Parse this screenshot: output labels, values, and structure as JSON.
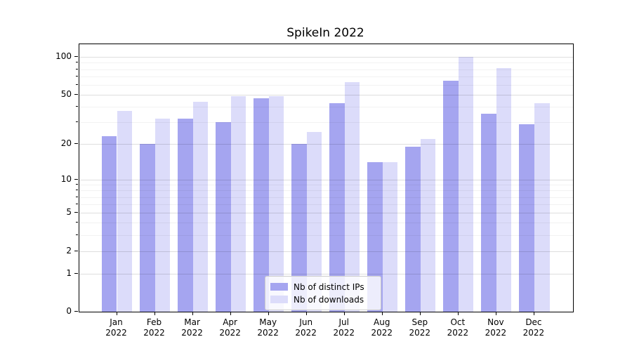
{
  "chart_data": {
    "type": "bar",
    "title": "SpikeIn 2022",
    "xlabel": "",
    "ylabel": "",
    "year_label": "2022",
    "categories": [
      "Jan",
      "Feb",
      "Mar",
      "Apr",
      "May",
      "Jun",
      "Jul",
      "Aug",
      "Sep",
      "Oct",
      "Nov",
      "Dec"
    ],
    "series": [
      {
        "name": "Nb of distinct IPs",
        "color": "#a5a5f0",
        "values": [
          23,
          20,
          32,
          30,
          47,
          20,
          43,
          14,
          19,
          65,
          35,
          29
        ]
      },
      {
        "name": "Nb of downloads",
        "color": "#dcdcfa",
        "values": [
          37,
          32,
          44,
          49,
          49,
          25,
          63,
          14,
          22,
          100,
          82,
          43
        ]
      }
    ],
    "y_scale": "log1p",
    "ylim": [
      0,
      127
    ],
    "y_ticks_major": [
      0,
      1,
      2,
      5,
      10,
      20,
      50,
      100
    ],
    "y_ticks_minor": [
      3,
      4,
      6,
      7,
      8,
      9,
      30,
      40,
      60,
      70,
      80,
      90
    ],
    "grid": true,
    "legend_position": "lower center"
  },
  "colors": {
    "bar_distinct_ips": "#a5a5f0",
    "bar_downloads": "#dcdcfa",
    "grid_major": "#dedede",
    "grid_minor": "#f2f2f2",
    "axis": "#000000",
    "legend_border": "#cccccc"
  }
}
